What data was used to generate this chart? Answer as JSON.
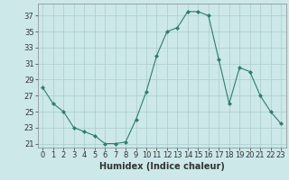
{
  "x": [
    0,
    1,
    2,
    3,
    4,
    5,
    6,
    7,
    8,
    9,
    10,
    11,
    12,
    13,
    14,
    15,
    16,
    17,
    18,
    19,
    20,
    21,
    22,
    23
  ],
  "y": [
    28,
    26,
    25,
    23,
    22.5,
    22,
    21,
    21,
    21.2,
    24,
    27.5,
    32,
    35,
    35.5,
    37.5,
    37.5,
    37,
    31.5,
    26,
    30.5,
    30,
    27,
    25,
    23.5
  ],
  "line_color": "#2e7d6e",
  "marker": "D",
  "marker_size": 2,
  "bg_color": "#cce8e8",
  "grid_color": "#aacece",
  "xlabel": "Humidex (Indice chaleur)",
  "xlim": [
    -0.5,
    23.5
  ],
  "ylim": [
    20.5,
    38.5
  ],
  "yticks": [
    21,
    23,
    25,
    27,
    29,
    31,
    33,
    35,
    37
  ],
  "xticks": [
    0,
    1,
    2,
    3,
    4,
    5,
    6,
    7,
    8,
    9,
    10,
    11,
    12,
    13,
    14,
    15,
    16,
    17,
    18,
    19,
    20,
    21,
    22,
    23
  ],
  "xlabel_fontsize": 7,
  "tick_fontsize": 6,
  "axis_color": "#2e7d6e",
  "tick_color": "#333333"
}
